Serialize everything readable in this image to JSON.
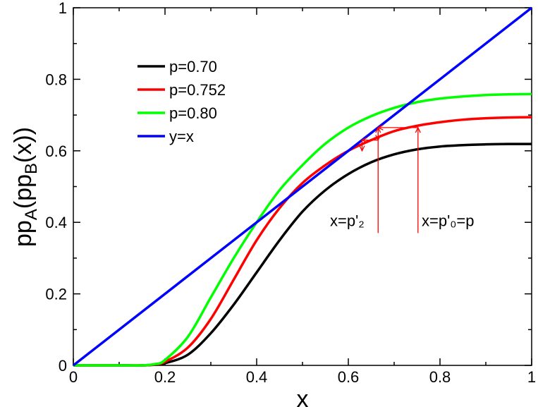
{
  "chart_data": {
    "type": "line",
    "title": "",
    "xlabel": "x",
    "ylabel": {
      "base": "pp",
      "sub1": "A",
      "mid": "(pp",
      "sub2": "B",
      "tail": "(x))"
    },
    "xlim": [
      0,
      1
    ],
    "ylim": [
      0,
      1
    ],
    "xticks": [
      0,
      0.2,
      0.4,
      0.6,
      0.8,
      1
    ],
    "yticks": [
      0,
      0.2,
      0.4,
      0.6,
      0.8,
      1
    ],
    "xtick_labels": [
      "0",
      "0.2",
      "0.4",
      "0.6",
      "0.8",
      "1"
    ],
    "ytick_labels": [
      "0",
      "0.2",
      "0.4",
      "0.6",
      "0.8",
      "1"
    ],
    "legend_position": "top-left",
    "series": [
      {
        "name": "p=0.70",
        "color": "#000000",
        "p": 0.7,
        "x": [
          0,
          0.1,
          0.15,
          0.18,
          0.2,
          0.25,
          0.3,
          0.35,
          0.4,
          0.45,
          0.5,
          0.55,
          0.6,
          0.65,
          0.7,
          0.75,
          0.8,
          0.85,
          0.9,
          0.95,
          1.0
        ],
        "values": [
          0,
          0,
          0.0,
          0.002,
          0.006,
          0.03,
          0.09,
          0.17,
          0.26,
          0.35,
          0.43,
          0.49,
          0.535,
          0.568,
          0.59,
          0.604,
          0.612,
          0.616,
          0.618,
          0.619,
          0.619
        ]
      },
      {
        "name": "p=0.752",
        "color": "#ff0000",
        "p": 0.752,
        "x": [
          0,
          0.1,
          0.15,
          0.18,
          0.2,
          0.25,
          0.3,
          0.35,
          0.4,
          0.45,
          0.5,
          0.55,
          0.6,
          0.65,
          0.7,
          0.75,
          0.8,
          0.85,
          0.9,
          0.95,
          1.0
        ],
        "values": [
          0,
          0,
          0.0,
          0.003,
          0.01,
          0.05,
          0.13,
          0.24,
          0.35,
          0.44,
          0.51,
          0.56,
          0.6,
          0.63,
          0.655,
          0.67,
          0.68,
          0.687,
          0.691,
          0.693,
          0.694
        ]
      },
      {
        "name": "p=0.80",
        "color": "#00ff00",
        "p": 0.8,
        "x": [
          0,
          0.1,
          0.15,
          0.18,
          0.2,
          0.25,
          0.3,
          0.35,
          0.4,
          0.45,
          0.5,
          0.55,
          0.6,
          0.65,
          0.7,
          0.75,
          0.8,
          0.85,
          0.9,
          0.95,
          1.0
        ],
        "values": [
          0,
          0,
          0.0,
          0.004,
          0.015,
          0.08,
          0.19,
          0.3,
          0.4,
          0.49,
          0.56,
          0.62,
          0.665,
          0.697,
          0.72,
          0.736,
          0.746,
          0.752,
          0.756,
          0.758,
          0.759
        ]
      },
      {
        "name": "y=x",
        "color": "#0000ff",
        "x": [
          0,
          1
        ],
        "values": [
          0,
          1
        ]
      }
    ],
    "iteration_arrows": {
      "color": "#ff0000",
      "paths": [
        {
          "points": [
            [
              0.752,
              0.37
            ],
            [
              0.752,
              0.665
            ],
            [
              0.665,
              0.665
            ],
            [
              0.665,
              0.63
            ],
            [
              0.63,
              0.63
            ],
            [
              0.63,
              0.6
            ]
          ]
        },
        {
          "points": [
            [
              0.665,
              0.37
            ],
            [
              0.665,
              0.665
            ]
          ]
        }
      ]
    },
    "annotations": [
      {
        "text": "x=p'₂",
        "x": 0.56,
        "y": 0.39
      },
      {
        "text": "x=p'₀=p",
        "x": 0.76,
        "y": 0.39
      }
    ]
  }
}
